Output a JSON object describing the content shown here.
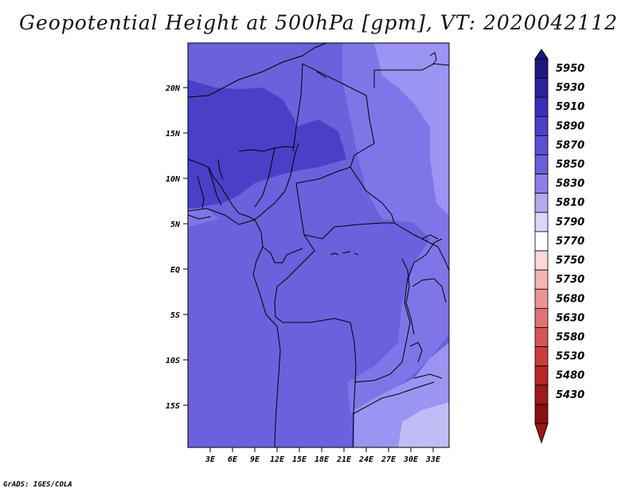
{
  "title": "Geopotential Height at 500hPa [gpm], VT: 2020042112",
  "credit": "GrADS: IGES/COLA",
  "map": {
    "lat_ticks": [
      "20N",
      "15N",
      "10N",
      "5N",
      "EQ",
      "5S",
      "10S",
      "15S"
    ],
    "lon_ticks": [
      "3E",
      "6E",
      "9E",
      "12E",
      "15E",
      "18E",
      "21E",
      "24E",
      "27E",
      "30E",
      "33E"
    ]
  },
  "colorbar": {
    "levels": [
      "5950",
      "5930",
      "5910",
      "5890",
      "5870",
      "5850",
      "5830",
      "5810",
      "5790",
      "5770",
      "5750",
      "5730",
      "5680",
      "5630",
      "5580",
      "5530",
      "5480",
      "5430"
    ],
    "colors": [
      "#201880",
      "#2b22a0",
      "#3a30b8",
      "#4a40c8",
      "#5a50d4",
      "#6a60dc",
      "#8a80e6",
      "#b0aaf0",
      "#d8d6fa",
      "#ffffff",
      "#fad8d8",
      "#f4b4b4",
      "#ec9494",
      "#e07474",
      "#d65656",
      "#cc3c3c",
      "#b82828",
      "#a01818",
      "#881010"
    ],
    "top_arrow_color": "#201880",
    "bottom_arrow_color": "#a01818"
  },
  "field_colors": {
    "h5830": "#9a94f2",
    "h5850": "#7e76e8",
    "h5870": "#6a61dc",
    "h5890": "#4a40c8",
    "h5810": "#c0bcf6"
  }
}
